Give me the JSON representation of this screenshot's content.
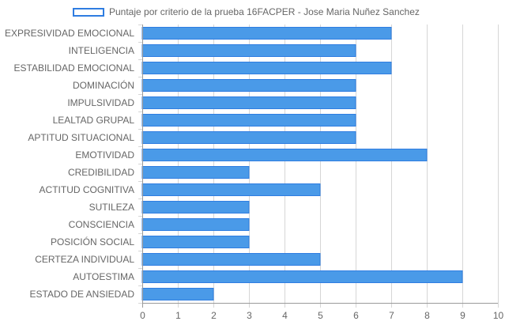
{
  "chart_data": {
    "type": "bar",
    "orientation": "horizontal",
    "categories": [
      "EXPRESIVIDAD EMOCIONAL",
      "INTELIGENCIA",
      "ESTABILIDAD EMOCIONAL",
      "DOMINACIÓN",
      "IMPULSIVIDAD",
      "LEALTAD GRUPAL",
      "APTITUD SITUACIONAL",
      "EMOTIVIDAD",
      "CREDIBILIDAD",
      "ACTITUD COGNITIVA",
      "SUTILEZA",
      "CONSCIENCIA",
      "POSICIÓN SOCIAL",
      "CERTEZA INDIVIDUAL",
      "AUTOESTIMA",
      "ESTADO DE ANSIEDAD"
    ],
    "series": [
      {
        "name": "Puntaje por criterio de la prueba 16FACPER - Jose Maria Nuñez Sanchez",
        "values": [
          7,
          6,
          7,
          6,
          6,
          6,
          6,
          8,
          3,
          5,
          3,
          3,
          3,
          5,
          9,
          2
        ],
        "color": "#4a9ae8",
        "border_color": "#2f7de1"
      }
    ],
    "xlim": [
      0,
      10
    ],
    "x_ticks": [
      "0",
      "1",
      "2",
      "3",
      "4",
      "5",
      "6",
      "7",
      "8",
      "9",
      "10"
    ],
    "grid": true,
    "legend_position": "top",
    "title": "",
    "xlabel": "",
    "ylabel": ""
  }
}
